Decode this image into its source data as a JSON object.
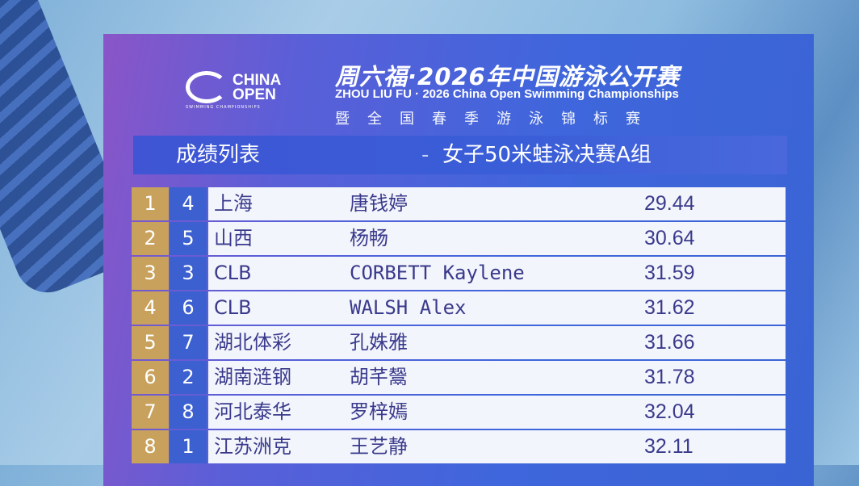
{
  "header": {
    "logo_text": [
      "CHINA",
      "OPEN"
    ],
    "logo_subtext": "SWIMMING CHAMPIONSHIPS",
    "title_cn": "周六福·2026年中国游泳公开赛",
    "title_en": "ZHOU LIU FU · 2026 China Open Swimming Championships",
    "subtitle_cn": "暨全国春季游泳锦标赛"
  },
  "result_bar": {
    "label": "成绩列表",
    "separator": "-",
    "event": "女子50米蛙泳决赛A组"
  },
  "results": [
    {
      "rank": "1",
      "lane": "4",
      "team": "上海",
      "name": "唐钱婷",
      "time": "29.44"
    },
    {
      "rank": "2",
      "lane": "5",
      "team": "山西",
      "name": "杨畅",
      "time": "30.64"
    },
    {
      "rank": "3",
      "lane": "3",
      "team": "CLB",
      "name": "CORBETT Kaylene",
      "time": "31.59"
    },
    {
      "rank": "4",
      "lane": "6",
      "team": "CLB",
      "name": "WALSH Alex",
      "time": "31.62"
    },
    {
      "rank": "5",
      "lane": "7",
      "team": "湖北体彩",
      "name": "孔姝雅",
      "time": "31.66"
    },
    {
      "rank": "6",
      "lane": "2",
      "team": "湖南涟钢",
      "name": "胡芊鬶",
      "time": "31.78"
    },
    {
      "rank": "7",
      "lane": "8",
      "team": "河北泰华",
      "name": "罗梓嫣",
      "time": "32.04"
    },
    {
      "rank": "8",
      "lane": "1",
      "team": "江苏洲克",
      "name": "王艺静",
      "time": "32.11"
    }
  ],
  "colors": {
    "rank_cell": "#c8a15c",
    "lane_cell": "#3c60d0",
    "row_bg": "#f3f5fc",
    "row_text": "#3a3a8c",
    "panel": "#3f66dc"
  }
}
